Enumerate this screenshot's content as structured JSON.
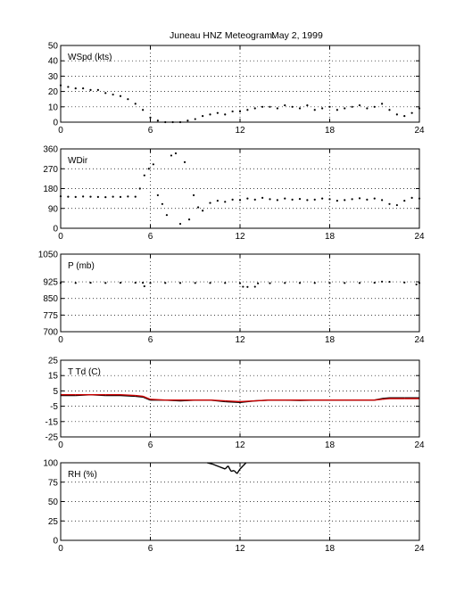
{
  "figure": {
    "title_station": "Juneau HNZ Meteogram:",
    "title_date": "May  2, 1999"
  },
  "chart_data": [
    {
      "type": "scatter",
      "label": "WSpd (kts)",
      "xlim": [
        0,
        24
      ],
      "ylim": [
        0,
        50
      ],
      "x_ticks": [
        "0",
        "6",
        "12",
        "18",
        "24"
      ],
      "y_ticks": [
        "0",
        "10",
        "20",
        "30",
        "40",
        "50"
      ],
      "grid": true,
      "series": [
        {
          "color": "#000000",
          "x": [
            0,
            0.5,
            1,
            1.5,
            2,
            2.5,
            3,
            3.5,
            4,
            4.5,
            5,
            5.5,
            6,
            6.5,
            7,
            7.5,
            8,
            8.5,
            9,
            9.5,
            10,
            10.5,
            11,
            11.5,
            12,
            12.5,
            13,
            13.5,
            14,
            14.5,
            15,
            15.5,
            16,
            16.5,
            17,
            17.5,
            18,
            18.5,
            19,
            19.5,
            20,
            20.5,
            21,
            21.5,
            22,
            22.5,
            23,
            23.5,
            24
          ],
          "y": [
            24,
            23,
            22,
            22,
            21,
            21,
            19,
            18,
            17,
            15,
            12,
            8,
            3,
            1,
            0,
            0,
            0,
            1,
            2,
            4,
            5,
            6,
            5,
            7,
            7,
            8,
            9,
            10,
            10,
            9,
            11,
            10,
            9,
            11,
            8,
            9,
            10,
            8,
            9,
            10,
            11,
            9,
            10,
            12,
            8,
            5,
            4,
            6,
            9
          ]
        }
      ]
    },
    {
      "type": "scatter",
      "label": "WDir",
      "xlim": [
        0,
        24
      ],
      "ylim": [
        0,
        360
      ],
      "x_ticks": [
        "0",
        "6",
        "12",
        "18",
        "24"
      ],
      "y_ticks": [
        "0",
        "90",
        "180",
        "270",
        "360"
      ],
      "grid": true,
      "series": [
        {
          "color": "#000000",
          "x": [
            0,
            0.5,
            1,
            1.5,
            2,
            2.5,
            3,
            3.5,
            4,
            4.5,
            5,
            5.3,
            5.6,
            5.9,
            6.2,
            6.5,
            6.8,
            7.1,
            7.4,
            7.7,
            8,
            8.3,
            8.6,
            8.9,
            9.2,
            9.5,
            10,
            10.5,
            11,
            11.5,
            12,
            12.5,
            13,
            13.5,
            14,
            14.5,
            15,
            15.5,
            16,
            16.5,
            17,
            17.5,
            18,
            18.5,
            19,
            19.5,
            20,
            20.5,
            21,
            21.5,
            22,
            22.5,
            23,
            23.5,
            24
          ],
          "y": [
            145,
            143,
            142,
            144,
            143,
            142,
            141,
            143,
            142,
            144,
            143,
            180,
            240,
            270,
            290,
            150,
            110,
            60,
            330,
            340,
            20,
            300,
            40,
            150,
            95,
            80,
            115,
            125,
            120,
            130,
            128,
            135,
            130,
            138,
            132,
            128,
            135,
            130,
            133,
            128,
            130,
            135,
            132,
            125,
            128,
            132,
            136,
            130,
            135,
            128,
            110,
            105,
            125,
            138,
            135
          ]
        }
      ]
    },
    {
      "type": "scatter",
      "label": "P (mb)",
      "xlim": [
        0,
        24
      ],
      "ylim": [
        700,
        1050
      ],
      "x_ticks": [
        "0",
        "6",
        "12",
        "18",
        "24"
      ],
      "y_ticks": [
        "700",
        "775",
        "850",
        "925",
        "1050"
      ],
      "grid": true,
      "series": [
        {
          "color": "#000000",
          "x": [
            0,
            1,
            2,
            3,
            4,
            5,
            5.5,
            5.6,
            6,
            7,
            8,
            9,
            10,
            11,
            12,
            12.2,
            12.5,
            13,
            13.2,
            14,
            15,
            16,
            17,
            18,
            19,
            20,
            21,
            21.5,
            22,
            23,
            23.8,
            24
          ],
          "y": [
            920,
            920,
            921,
            920,
            921,
            921,
            921,
            905,
            920,
            920,
            920,
            920,
            920,
            920,
            919,
            903,
            902,
            903,
            918,
            919,
            920,
            920,
            920,
            920,
            920,
            920,
            921,
            926,
            925,
            922,
            913,
            920
          ]
        }
      ]
    },
    {
      "type": "line",
      "label": "T Td (C)",
      "xlim": [
        0,
        24
      ],
      "ylim": [
        -25,
        25
      ],
      "x_ticks": [
        "0",
        "6",
        "12",
        "18",
        "24"
      ],
      "y_ticks": [
        "-25",
        "-15",
        "-5",
        "5",
        "15",
        "25"
      ],
      "grid": true,
      "series": [
        {
          "color": "#000000",
          "x": [
            0,
            1,
            2,
            3,
            4,
            5,
            5.5,
            6,
            7,
            8,
            9,
            10,
            11,
            12,
            13,
            14,
            15,
            16,
            17,
            18,
            19,
            20,
            21,
            21.5,
            22,
            23,
            24
          ],
          "y": [
            2,
            2,
            2.5,
            2,
            2,
            1.5,
            1,
            -1,
            -1,
            -1.5,
            -1,
            -1,
            -2,
            -2.5,
            -1.5,
            -1,
            -1,
            -1.2,
            -1,
            -1,
            -1,
            -1,
            -1,
            0,
            0.5,
            0.5,
            0.5
          ]
        },
        {
          "color": "#cc0000",
          "x": [
            0,
            1,
            2,
            3,
            4,
            5,
            5.5,
            6,
            7,
            8,
            9,
            10,
            11,
            12,
            13,
            14,
            15,
            16,
            17,
            18,
            19,
            20,
            21,
            21.5,
            22,
            23,
            24
          ],
          "y": [
            2.5,
            2.5,
            2.5,
            2.5,
            2.5,
            2,
            1.5,
            -0.5,
            -1,
            -1,
            -1,
            -1,
            -1.5,
            -2,
            -1.5,
            -1,
            -1,
            -1,
            -1,
            -1,
            -1,
            -1,
            -1,
            -0.5,
            0,
            0,
            0
          ]
        }
      ]
    },
    {
      "type": "line",
      "label": "RH (%)",
      "xlim": [
        0,
        24
      ],
      "ylim": [
        0,
        100
      ],
      "x_ticks": [
        "0",
        "6",
        "12",
        "18",
        "24"
      ],
      "y_ticks": [
        "0",
        "25",
        "50",
        "75",
        "100"
      ],
      "grid": true,
      "series": [
        {
          "color": "#000000",
          "x": [
            9.8,
            10.2,
            10.6,
            11,
            11.2,
            11.4,
            11.6,
            11.8,
            12,
            12.2,
            12.4
          ],
          "y": [
            100,
            98,
            95,
            92,
            96,
            89,
            90,
            86,
            92,
            96,
            100
          ]
        }
      ]
    }
  ]
}
